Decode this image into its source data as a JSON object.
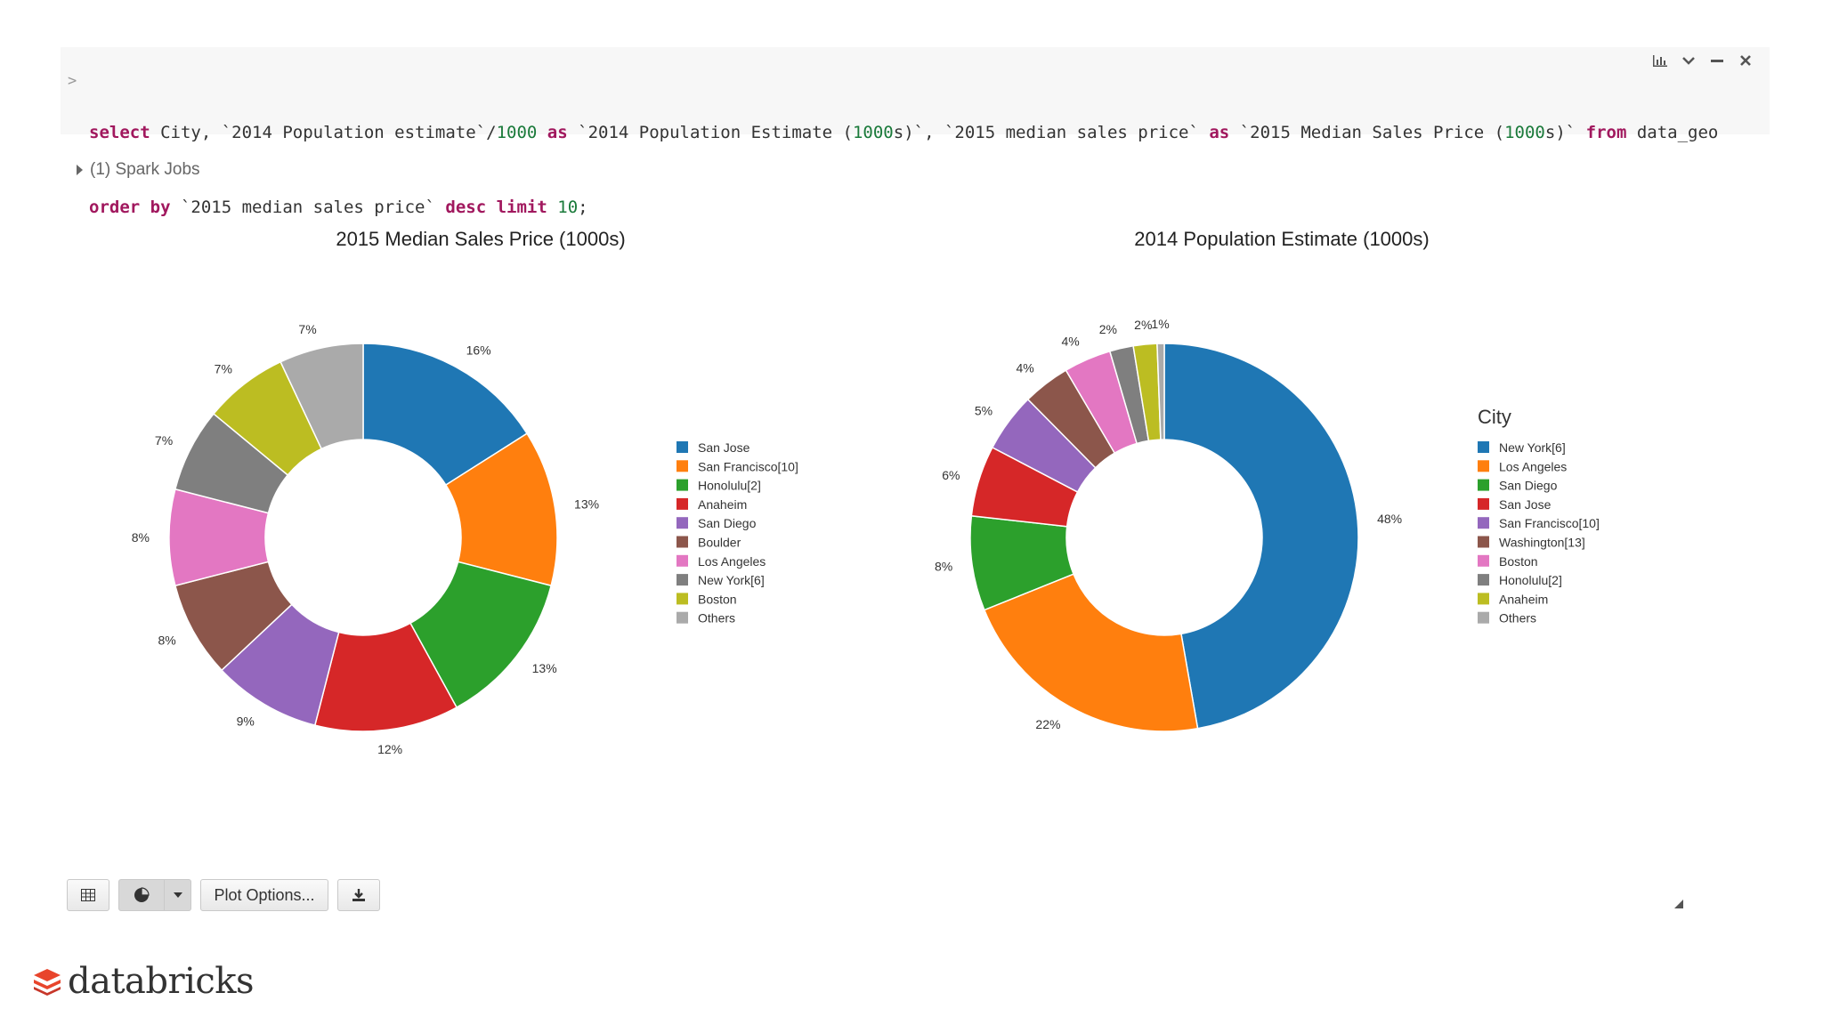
{
  "cell": {
    "prompt": ">",
    "code_line1": [
      {
        "t": "select",
        "k": "kw"
      },
      {
        "t": " City, `2014 Population estimate`/"
      },
      {
        "t": "1000",
        "k": "num"
      },
      {
        "t": " "
      },
      {
        "t": "as",
        "k": "kw"
      },
      {
        "t": " `2014 Population Estimate ("
      },
      {
        "t": "1000",
        "k": "num"
      },
      {
        "t": "s)`, `2015 median sales price` "
      },
      {
        "t": "as",
        "k": "kw"
      },
      {
        "t": " `2015 Median Sales Price ("
      },
      {
        "t": "1000",
        "k": "num"
      },
      {
        "t": "s)` "
      },
      {
        "t": "from",
        "k": "kw"
      },
      {
        "t": " data_geo"
      }
    ],
    "code_line2": [
      {
        "t": "order by",
        "k": "kw"
      },
      {
        "t": " `2015 median sales price` "
      },
      {
        "t": "desc",
        "k": "kw"
      },
      {
        "t": " "
      },
      {
        "t": "limit",
        "k": "kw"
      },
      {
        "t": " "
      },
      {
        "t": "10",
        "k": "num"
      },
      {
        "t": ";"
      }
    ],
    "tools": [
      "bar-chart-icon",
      "chevron-down-icon",
      "minimize-icon",
      "close-icon"
    ]
  },
  "spark_jobs": "(1) Spark Jobs",
  "chart_data": [
    {
      "type": "pie",
      "title": "2015 Median Sales Price (1000s)",
      "legend_title": "",
      "legend_position": "right",
      "donut": true,
      "slices": [
        {
          "label": "San Jose",
          "value": 16,
          "pct": "16%",
          "color": "#1f77b4"
        },
        {
          "label": "San Francisco[10]",
          "value": 13,
          "pct": "13%",
          "color": "#ff7f0e"
        },
        {
          "label": "Honolulu[2]",
          "value": 13,
          "pct": "13%",
          "color": "#2ca02c"
        },
        {
          "label": "Anaheim",
          "value": 12,
          "pct": "12%",
          "color": "#d62728"
        },
        {
          "label": "San Diego",
          "value": 9,
          "pct": "9%",
          "color": "#9467bd"
        },
        {
          "label": "Boulder",
          "value": 8,
          "pct": "8%",
          "color": "#8c564b"
        },
        {
          "label": "Los Angeles",
          "value": 8,
          "pct": "8%",
          "color": "#e377c2"
        },
        {
          "label": "New York[6]",
          "value": 7,
          "pct": "7%",
          "color": "#7f7f7f"
        },
        {
          "label": "Boston",
          "value": 7,
          "pct": "7%",
          "color": "#bcbd22"
        },
        {
          "label": "Others",
          "value": 7,
          "pct": "7%",
          "color": "#aaaaaa"
        }
      ]
    },
    {
      "type": "pie",
      "title": "2014 Population Estimate (1000s)",
      "legend_title": "City",
      "legend_position": "right",
      "donut": true,
      "slices": [
        {
          "label": "New York[6]",
          "value": 48,
          "pct": "48%",
          "color": "#1f77b4"
        },
        {
          "label": "Los Angeles",
          "value": 22,
          "pct": "22%",
          "color": "#ff7f0e"
        },
        {
          "label": "San Diego",
          "value": 8,
          "pct": "8%",
          "color": "#2ca02c"
        },
        {
          "label": "San Jose",
          "value": 6,
          "pct": "6%",
          "color": "#d62728"
        },
        {
          "label": "San Francisco[10]",
          "value": 5,
          "pct": "5%",
          "color": "#9467bd"
        },
        {
          "label": "Washington[13]",
          "value": 4,
          "pct": "4%",
          "color": "#8c564b"
        },
        {
          "label": "Boston",
          "value": 4,
          "pct": "4%",
          "color": "#e377c2"
        },
        {
          "label": "Honolulu[2]",
          "value": 2,
          "pct": "2%",
          "color": "#7f7f7f"
        },
        {
          "label": "Anaheim",
          "value": 2,
          "pct": "2%",
          "color": "#bcbd22"
        },
        {
          "label": "Others",
          "value": 0.6,
          "pct": "1%",
          "color": "#aaaaaa"
        }
      ]
    }
  ],
  "toolbar": {
    "plot_options_label": "Plot Options..."
  },
  "brand": {
    "name": "databricks",
    "color": "#e8452c"
  }
}
